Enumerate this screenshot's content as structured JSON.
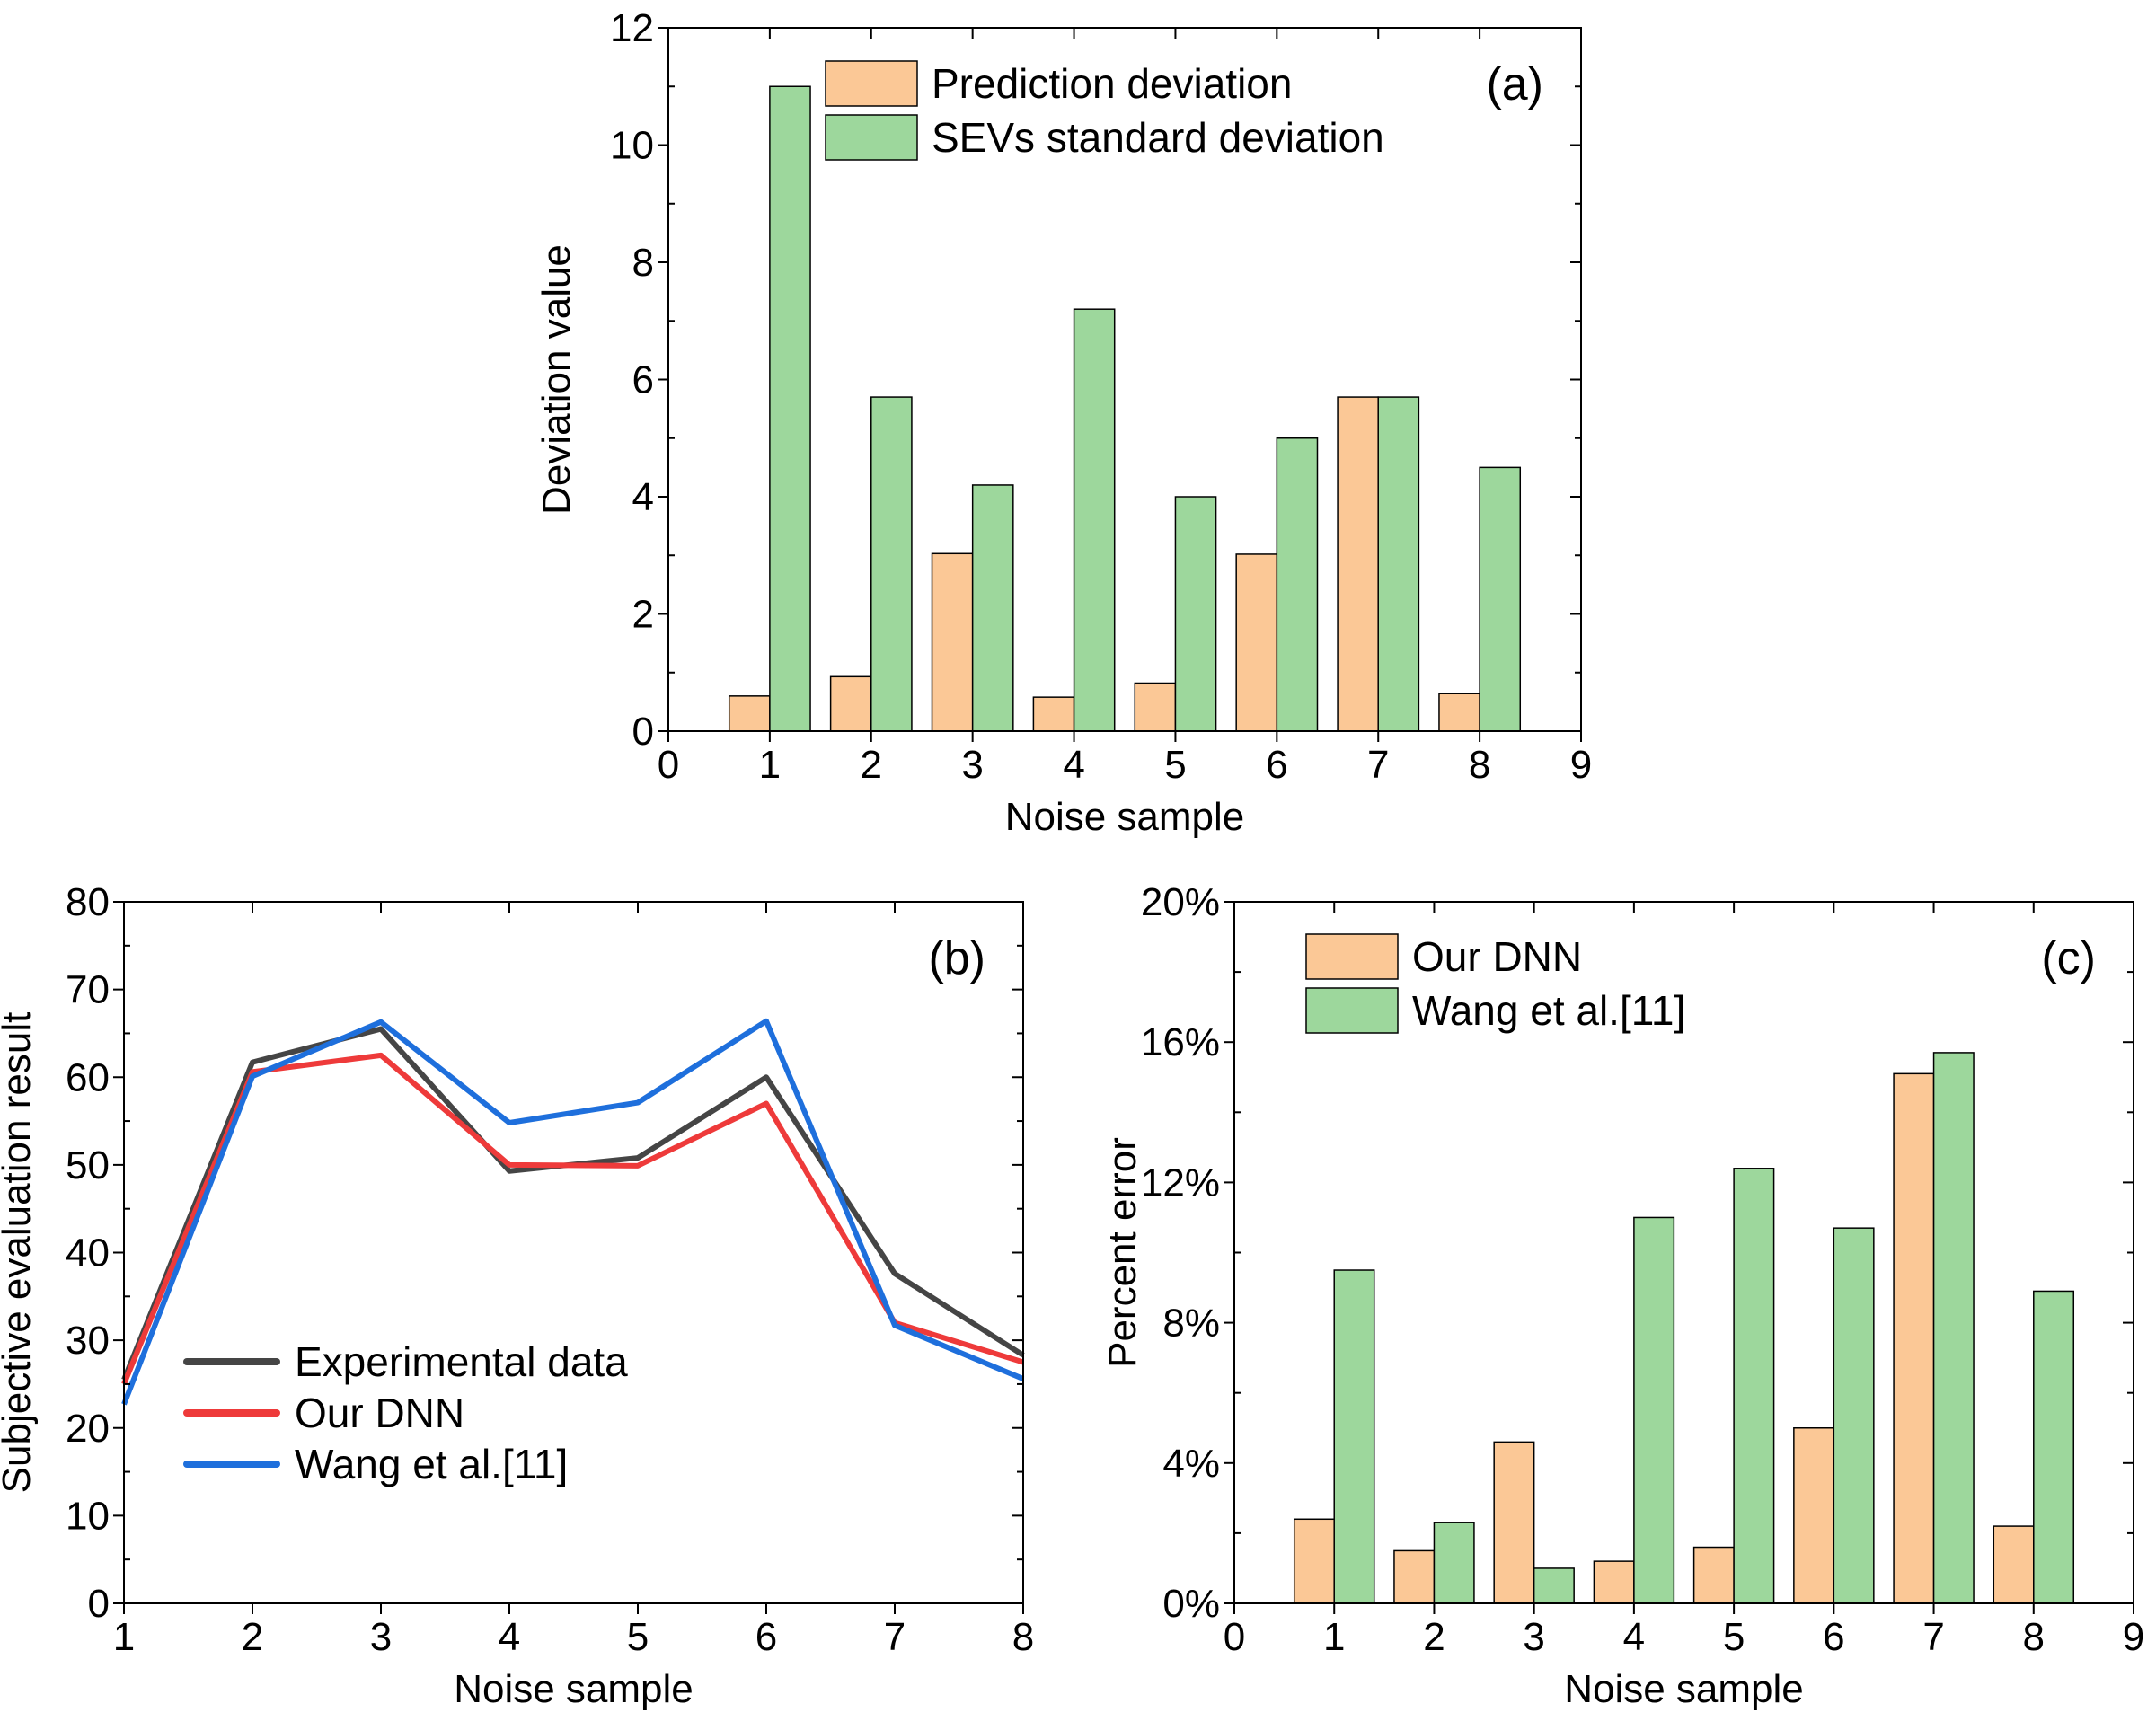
{
  "colors": {
    "orange": "#fbc896",
    "green": "#9dd79c",
    "black_line": "#454545",
    "red_line": "#ee3a3a",
    "blue_line": "#1e6fdc"
  },
  "chart_data": [
    {
      "type": "bar",
      "panel_label": "(a)",
      "xlabel": "Noise sample",
      "ylabel": "Deviation value",
      "xlim": [
        0,
        9
      ],
      "ylim": [
        0,
        12
      ],
      "xticks": [
        "0",
        "1",
        "2",
        "3",
        "4",
        "5",
        "6",
        "7",
        "8",
        "9"
      ],
      "yticks": [
        "0",
        "2",
        "4",
        "6",
        "8",
        "10",
        "12"
      ],
      "categories": [
        1,
        2,
        3,
        4,
        5,
        6,
        7,
        8
      ],
      "legend_position": "top",
      "series": [
        {
          "name": "Prediction deviation",
          "color": "#fbc896",
          "values": [
            0.6,
            0.93,
            3.03,
            0.58,
            0.82,
            3.02,
            5.7,
            0.64
          ]
        },
        {
          "name": "SEVs standard deviation",
          "color": "#9dd79c",
          "values": [
            11.0,
            5.7,
            4.2,
            7.2,
            4.0,
            5.0,
            5.7,
            4.5
          ]
        }
      ]
    },
    {
      "type": "line",
      "panel_label": "(b)",
      "xlabel": "Noise sample",
      "ylabel": "Subjective evaluation result",
      "xlim": [
        1,
        8
      ],
      "ylim": [
        0,
        80
      ],
      "xticks": [
        "1",
        "2",
        "3",
        "4",
        "5",
        "6",
        "7",
        "8"
      ],
      "yticks": [
        "0",
        "10",
        "20",
        "30",
        "40",
        "50",
        "60",
        "70",
        "80"
      ],
      "x": [
        1,
        2,
        3,
        4,
        5,
        6,
        7,
        8
      ],
      "legend_position": "bottom-left",
      "series": [
        {
          "name": "Experimental data",
          "color": "#454545",
          "values": [
            25.5,
            61.7,
            65.5,
            49.3,
            50.8,
            60.0,
            37.6,
            28.3
          ]
        },
        {
          "name": "Our DNN",
          "color": "#ee3a3a",
          "values": [
            25.0,
            60.6,
            62.5,
            50.0,
            49.9,
            57.0,
            32.0,
            27.5
          ]
        },
        {
          "name": "Wang et al.[11]",
          "color": "#1e6fdc",
          "values": [
            22.7,
            60.1,
            66.3,
            54.8,
            57.1,
            66.4,
            31.7,
            25.6
          ]
        }
      ]
    },
    {
      "type": "bar",
      "panel_label": "(c)",
      "xlabel": "Noise sample",
      "ylabel": "Percent error",
      "xlim": [
        0,
        9
      ],
      "ylim": [
        0,
        20
      ],
      "xticks": [
        "0",
        "1",
        "2",
        "3",
        "4",
        "5",
        "6",
        "7",
        "8",
        "9"
      ],
      "yticks": [
        "0%",
        "4%",
        "8%",
        "12%",
        "16%",
        "20%"
      ],
      "categories": [
        1,
        2,
        3,
        4,
        5,
        6,
        7,
        8
      ],
      "legend_position": "top-left",
      "series": [
        {
          "name": "Our DNN",
          "color": "#fbc896",
          "values": [
            2.4,
            1.5,
            4.6,
            1.2,
            1.6,
            5.0,
            15.1,
            2.2
          ]
        },
        {
          "name": "Wang et al.[11]",
          "color": "#9dd79c",
          "values": [
            9.5,
            2.3,
            1.0,
            11.0,
            12.4,
            10.7,
            15.7,
            8.9
          ]
        }
      ]
    }
  ]
}
